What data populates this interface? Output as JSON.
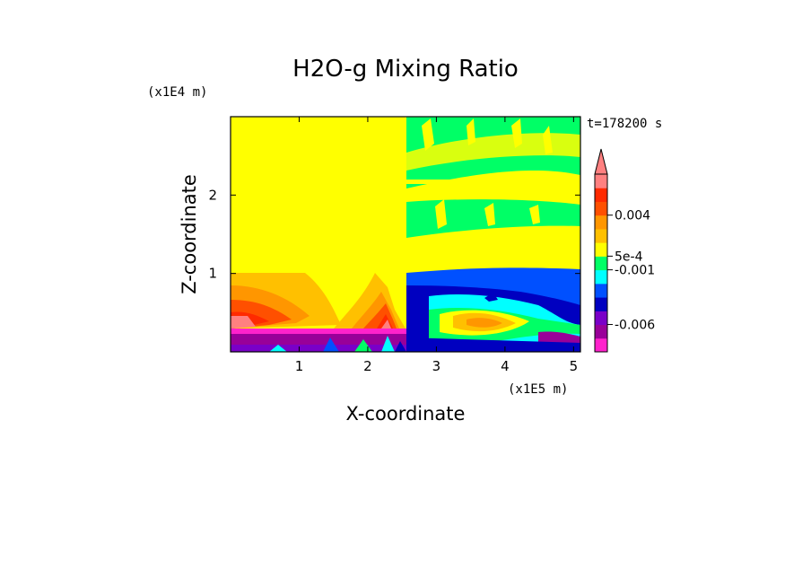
{
  "chart_data": {
    "type": "heatmap",
    "title": "H2O-g Mixing Ratio",
    "xlabel": "X-coordinate",
    "ylabel": "Z-coordinate",
    "x_unit": "(x1E5 m)",
    "y_unit": "(x1E4 m)",
    "time_label": "t=178200 s",
    "xlim": [
      0,
      5.1
    ],
    "ylim": [
      0,
      3.0
    ],
    "x_ticks": [
      1,
      2,
      3,
      4,
      5
    ],
    "y_ticks": [
      1,
      2
    ],
    "grid": false,
    "legend": "colorbar-right",
    "colorbar": {
      "extend": "max",
      "colors": [
        "#ff22cc",
        "#990099",
        "#7a00c8",
        "#0000c0",
        "#0050ff",
        "#00ffff",
        "#00ff66",
        "#ffff00",
        "#ffc000",
        "#ff9600",
        "#ff5000",
        "#ff2a00",
        "#ff8080"
      ],
      "tick_labels": [
        "-0.006",
        "-0.001",
        "5e-4",
        "0.004"
      ]
    },
    "regions": [
      {
        "name": "upper-left layer",
        "x": [
          0,
          2.55
        ],
        "z": [
          1.0,
          3.0
        ],
        "color": "#ffff00"
      },
      {
        "name": "upper-right layer",
        "x": [
          2.55,
          5.1
        ],
        "z": [
          1.0,
          3.0
        ],
        "color": "#00ff66"
      },
      {
        "name": "lower-left layer",
        "x": [
          0,
          2.55
        ],
        "z": [
          0.3,
          1.0
        ],
        "color": "#ff9600"
      },
      {
        "name": "lower-right layer",
        "x": [
          2.55,
          5.1
        ],
        "z": [
          0,
          1.0
        ],
        "color": "#0050ff"
      },
      {
        "name": "surface layer",
        "x": [
          0,
          2.55
        ],
        "z": [
          0,
          0.3
        ],
        "color": "#990099"
      }
    ]
  }
}
